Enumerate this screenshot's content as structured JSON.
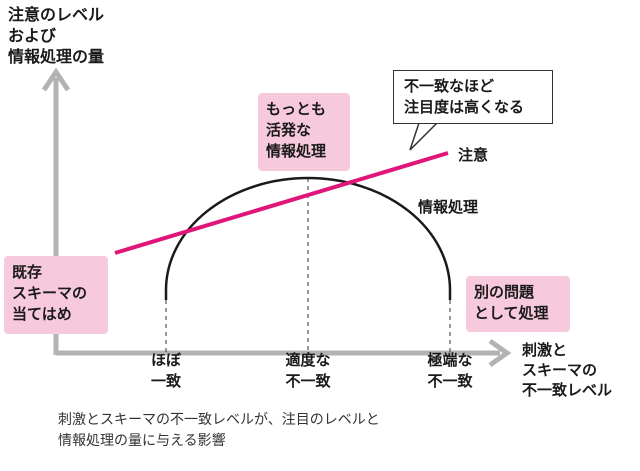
{
  "axes": {
    "y_label": "注意のレベル\nおよび\n情報処理の量",
    "x_label": "刺激と\nスキーマの\n不一致レベル"
  },
  "x_ticks": [
    {
      "label": "ほぼ\n一致"
    },
    {
      "label": "適度な\n不一致"
    },
    {
      "label": "極端な\n不一致"
    }
  ],
  "curves": {
    "attention": {
      "label": "注意",
      "color": "#e0157a"
    },
    "processing": {
      "label": "情報処理",
      "color": "#1a1a1a"
    }
  },
  "boxes": {
    "peak": "もっとも\n活発な\n情報処理",
    "left": "既存\nスキーマの\n当てはめ",
    "right": "別の問題\nとして処理"
  },
  "callout": "不一致なほど\n注目度は高くなる",
  "caption": "刺激とスキーマの不一致レベルが、注目のレベルと\n情報処理の量に与える影響",
  "colors": {
    "axis": "#b3b3b3",
    "box_fill": "#f7c9dc",
    "attention": "#e0157a"
  }
}
